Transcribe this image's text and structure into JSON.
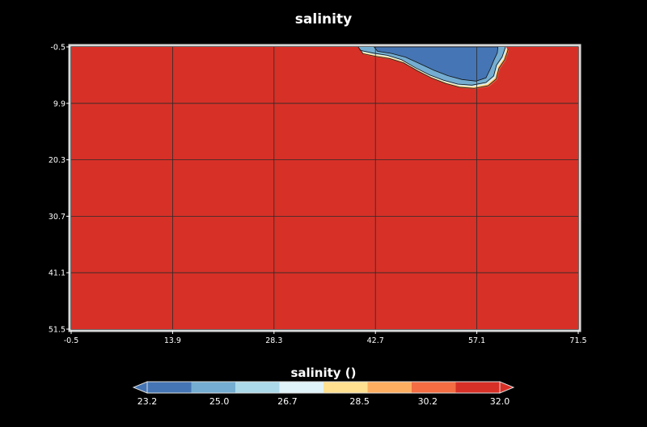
{
  "chart_data": {
    "type": "heatmap",
    "title": "salinity",
    "xlabel": "",
    "ylabel": "",
    "xlim": [
      -0.5,
      71.5
    ],
    "ylim": [
      51.5,
      -0.5
    ],
    "x_ticks": [
      "-0.5",
      "13.9",
      "28.3",
      "42.7",
      "57.1",
      "71.5"
    ],
    "y_ticks": [
      "-0.5",
      "9.9",
      "20.3",
      "30.7",
      "41.1",
      "51.5"
    ],
    "grid": true,
    "background_value": 32.0,
    "fresh_region_outline": [
      [
        40.3,
        -0.5
      ],
      [
        40.7,
        0.3
      ],
      [
        42.5,
        0.8
      ],
      [
        44.5,
        1.2
      ],
      [
        46.5,
        2.0
      ],
      [
        48.5,
        3.5
      ],
      [
        50.5,
        4.8
      ],
      [
        52.5,
        5.8
      ],
      [
        54.5,
        6.5
      ],
      [
        56.5,
        6.7
      ],
      [
        58.5,
        6.2
      ],
      [
        59.6,
        5.0
      ],
      [
        60.0,
        3.0
      ],
      [
        60.8,
        1.5
      ],
      [
        61.2,
        0.0
      ],
      [
        61.3,
        -0.5
      ]
    ],
    "fresh_core_outline": [
      [
        42.5,
        -0.5
      ],
      [
        43.0,
        0.3
      ],
      [
        45.0,
        0.7
      ],
      [
        47.0,
        1.4
      ],
      [
        49.0,
        2.6
      ],
      [
        51.0,
        3.8
      ],
      [
        53.0,
        4.8
      ],
      [
        55.0,
        5.5
      ],
      [
        57.0,
        5.8
      ],
      [
        58.4,
        5.2
      ],
      [
        59.0,
        3.6
      ],
      [
        59.5,
        2.0
      ],
      [
        60.0,
        0.6
      ],
      [
        60.1,
        -0.5
      ]
    ],
    "colorbar": {
      "label": "salinity ()",
      "min": 23.2,
      "max": 32.0,
      "ticks": [
        "23.2",
        "25.0",
        "26.7",
        "28.5",
        "30.2",
        "32.0"
      ],
      "colors": [
        "#4575b4",
        "#74add1",
        "#abd9e9",
        "#e0f3f8",
        "#fee090",
        "#fdae61",
        "#f46d43",
        "#d73027"
      ],
      "extend": "both"
    }
  }
}
